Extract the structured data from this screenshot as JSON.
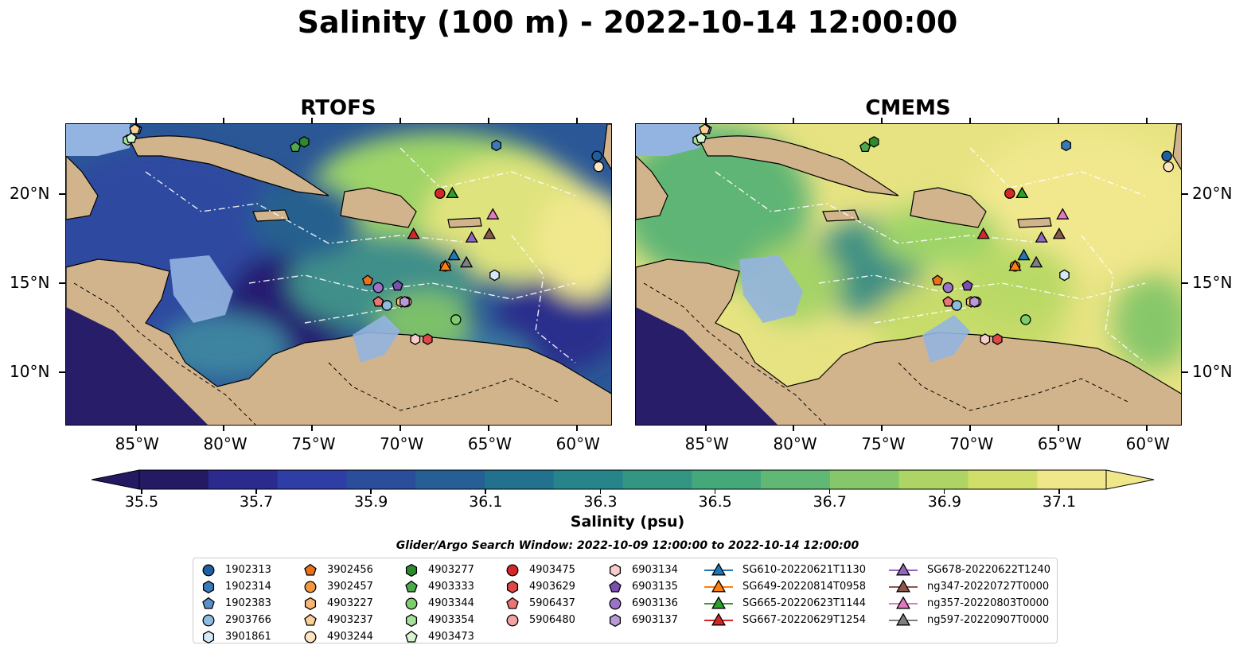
{
  "title": "Salinity (100 m) - 2022-10-14 12:00:00",
  "panels": {
    "left": "RTOFS",
    "right": "CMEMS"
  },
  "lon_labels": [
    "85°W",
    "80°W",
    "75°W",
    "70°W",
    "65°W",
    "60°W"
  ],
  "lat_labels": [
    "20°N",
    "15°N",
    "10°N"
  ],
  "colorbar": {
    "label": "Salinity (psu)",
    "ticks": [
      "35.5",
      "35.7",
      "35.9",
      "36.1",
      "36.3",
      "36.5",
      "36.7",
      "36.9",
      "37.1"
    ],
    "colors": [
      "#231a63",
      "#2a2a8f",
      "#2e3ea4",
      "#2b4e9c",
      "#255f95",
      "#22718e",
      "#26848a",
      "#329682",
      "#44a87b",
      "#61b874",
      "#87c76b",
      "#add464",
      "#d1df6a",
      "#efe78a"
    ]
  },
  "search_window": "Glider/Argo Search Window: 2022-10-09 12:00:00 to 2022-10-14 12:00:00",
  "legend": [
    {
      "label": "1902313",
      "marker": "circle",
      "color": "#1f5fa0"
    },
    {
      "label": "1902314",
      "marker": "hexagon",
      "color": "#3a7ab8"
    },
    {
      "label": "1902383",
      "marker": "pentagon",
      "color": "#5a8fc8"
    },
    {
      "label": "2903766",
      "marker": "circle",
      "color": "#8dbce0"
    },
    {
      "label": "3901861",
      "marker": "hexagon",
      "color": "#d4e8f6"
    },
    {
      "label": "3902456",
      "marker": "pentagon",
      "color": "#e8711a"
    },
    {
      "label": "3902457",
      "marker": "circle",
      "color": "#f39740"
    },
    {
      "label": "4903227",
      "marker": "hexagon",
      "color": "#f8b670"
    },
    {
      "label": "4903237",
      "marker": "pentagon",
      "color": "#fbcf96"
    },
    {
      "label": "4903244",
      "marker": "circle",
      "color": "#fde4c0"
    },
    {
      "label": "4903277",
      "marker": "hexagon",
      "color": "#2d8a2d"
    },
    {
      "label": "4903333",
      "marker": "pentagon",
      "color": "#4ea84e"
    },
    {
      "label": "4903344",
      "marker": "circle",
      "color": "#7dcd6e"
    },
    {
      "label": "4903354",
      "marker": "hexagon",
      "color": "#a6e09a"
    },
    {
      "label": "4903473",
      "marker": "pentagon",
      "color": "#d8f3cf"
    },
    {
      "label": "4903475",
      "marker": "circle",
      "color": "#d62728"
    },
    {
      "label": "4903629",
      "marker": "hexagon",
      "color": "#e04848"
    },
    {
      "label": "5906437",
      "marker": "pentagon",
      "color": "#ec7474"
    },
    {
      "label": "5906480",
      "marker": "circle",
      "color": "#f4a2a2"
    },
    {
      "label": "6903134",
      "marker": "hexagon",
      "color": "#f9cccc"
    },
    {
      "label": "6903135",
      "marker": "pentagon",
      "color": "#7b4fb0"
    },
    {
      "label": "6903136",
      "marker": "circle",
      "color": "#9a72c8"
    },
    {
      "label": "6903137",
      "marker": "hexagon",
      "color": "#b89ad8"
    },
    {
      "label": "SG610-20220621T1130",
      "marker": "triangle-line",
      "color": "#1f77b4"
    },
    {
      "label": "SG649-20220814T0958",
      "marker": "triangle-line",
      "color": "#ff7f0e"
    },
    {
      "label": "SG665-20220623T1144",
      "marker": "triangle-line",
      "color": "#2ca02c"
    },
    {
      "label": "SG667-20220629T1254",
      "marker": "triangle-line",
      "color": "#d62728"
    },
    {
      "label": "SG678-20220622T1240",
      "marker": "triangle-line",
      "color": "#9467bd"
    },
    {
      "label": "ng347-20220727T0000",
      "marker": "triangle-line",
      "color": "#8c564b"
    },
    {
      "label": "ng357-20220803T0000",
      "marker": "triangle-line",
      "color": "#e377c2"
    },
    {
      "label": "ng597-20220907T0000",
      "marker": "triangle-line",
      "color": "#7f7f7f"
    }
  ],
  "observations": [
    {
      "id": "1902313",
      "lon": -58.9,
      "lat": 22.2
    },
    {
      "id": "1902314",
      "lon": -64.6,
      "lat": 22.8
    },
    {
      "id": "1902383",
      "lon": -85.0,
      "lat": 23.7
    },
    {
      "id": "2903766",
      "lon": -70.8,
      "lat": 13.8
    },
    {
      "id": "3901861",
      "lon": -64.7,
      "lat": 15.5
    },
    {
      "id": "3902456",
      "lon": -71.9,
      "lat": 15.2
    },
    {
      "id": "3902457",
      "lon": -67.5,
      "lat": 16.0
    },
    {
      "id": "4903227",
      "lon": -70.0,
      "lat": 14.0
    },
    {
      "id": "4903237",
      "lon": -85.1,
      "lat": 23.7
    },
    {
      "id": "4903244",
      "lon": -58.8,
      "lat": 21.6
    },
    {
      "id": "4903277",
      "lon": -75.5,
      "lat": 23.0
    },
    {
      "id": "4903333",
      "lon": -76.0,
      "lat": 22.7
    },
    {
      "id": "4903344",
      "lon": -66.9,
      "lat": 13.0
    },
    {
      "id": "4903354",
      "lon": -85.5,
      "lat": 23.1
    },
    {
      "id": "4903473",
      "lon": -85.3,
      "lat": 23.2
    },
    {
      "id": "4903475",
      "lon": -67.8,
      "lat": 20.1
    },
    {
      "id": "4903629",
      "lon": -68.5,
      "lat": 11.9
    },
    {
      "id": "5906437",
      "lon": -71.3,
      "lat": 14.0
    },
    {
      "id": "5906480",
      "lon": -69.7,
      "lat": 14.0
    },
    {
      "id": "6903134",
      "lon": -69.2,
      "lat": 11.9
    },
    {
      "id": "6903135",
      "lon": -70.2,
      "lat": 14.9
    },
    {
      "id": "6903136",
      "lon": -71.3,
      "lat": 14.8
    },
    {
      "id": "6903137",
      "lon": -69.8,
      "lat": 14.0
    },
    {
      "id": "SG610-20220621T1130",
      "lon": -67.0,
      "lat": 16.6
    },
    {
      "id": "SG649-20220814T0958",
      "lon": -67.5,
      "lat": 16.0
    },
    {
      "id": "SG665-20220623T1144",
      "lon": -67.1,
      "lat": 20.1
    },
    {
      "id": "SG667-20220629T1254",
      "lon": -69.3,
      "lat": 17.8
    },
    {
      "id": "SG678-20220622T1240",
      "lon": -66.0,
      "lat": 17.6
    },
    {
      "id": "ng347-20220727T0000",
      "lon": -65.0,
      "lat": 17.8
    },
    {
      "id": "ng357-20220803T0000",
      "lon": -64.8,
      "lat": 18.9
    },
    {
      "id": "ng597-20220907T0000",
      "lon": -66.3,
      "lat": 16.2
    }
  ]
}
